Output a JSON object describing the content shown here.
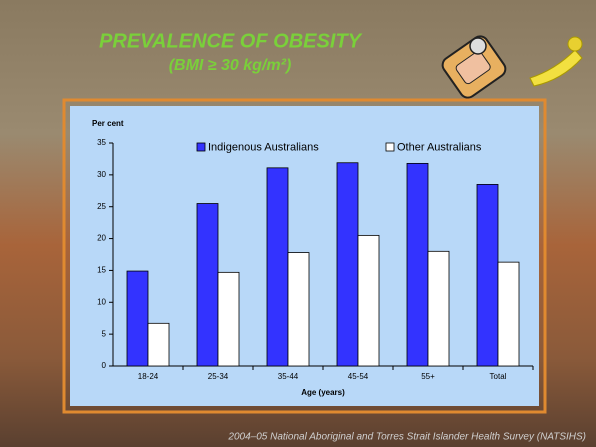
{
  "chart_data": {
    "type": "bar",
    "title": "PREVALENCE OF OBESITY",
    "subtitle": "(BMI ≥ 30 kg/m²)",
    "y_label": "Per cent",
    "x_label": "Age (years)",
    "footer": "2004–05 National Aboriginal and Torres Strait Islander Health Survey (NATSIHS)",
    "categories": [
      "18-24",
      "25-34",
      "35-44",
      "45-54",
      "55+",
      "Total"
    ],
    "series": [
      {
        "name": "Indigenous Australians",
        "color": "#3333ff",
        "values": [
          14.9,
          25.5,
          31.1,
          31.9,
          31.8,
          28.5
        ]
      },
      {
        "name": "Other Australians",
        "color": "#ffffff",
        "values": [
          6.7,
          14.7,
          17.8,
          20.5,
          18.0,
          16.3
        ]
      }
    ],
    "ylim": [
      0,
      35
    ],
    "yticks": [
      0,
      5,
      10,
      15,
      20,
      25,
      30,
      35
    ],
    "grid": false,
    "legend": "top"
  }
}
